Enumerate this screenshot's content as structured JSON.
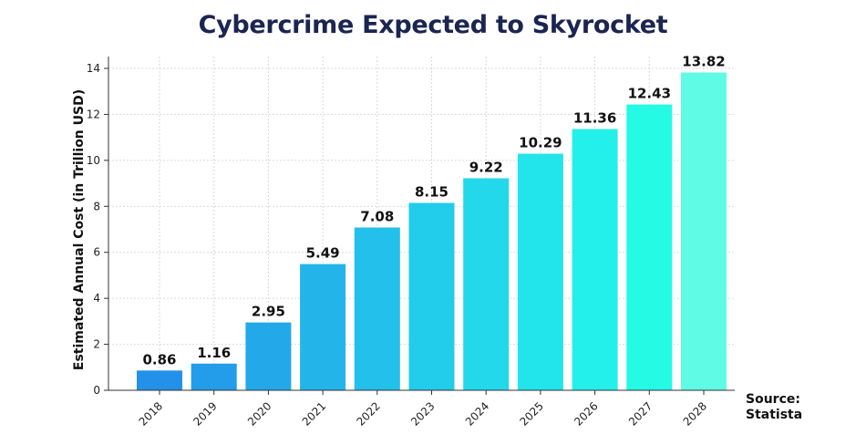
{
  "title": "Cybercrime Expected to Skyrocket",
  "source": {
    "label": "Source:",
    "name": "Statista"
  },
  "chart_data": {
    "type": "bar",
    "title": "Cybercrime Expected to Skyrocket",
    "xlabel": "",
    "ylabel": "Estimated Annual Cost (in Trillion USD)",
    "categories": [
      "2018",
      "2019",
      "2020",
      "2021",
      "2022",
      "2023",
      "2024",
      "2025",
      "2026",
      "2027",
      "2028"
    ],
    "values": [
      0.86,
      1.16,
      2.95,
      5.49,
      7.08,
      8.15,
      9.22,
      10.29,
      11.36,
      12.43,
      13.82
    ],
    "value_labels": [
      "0.86",
      "1.16",
      "2.95",
      "5.49",
      "7.08",
      "8.15",
      "9.22",
      "10.29",
      "11.36",
      "12.43",
      "13.82"
    ],
    "ylim": [
      0,
      14
    ],
    "yticks": [
      "0",
      "2",
      "4",
      "6",
      "8",
      "10",
      "12",
      "14"
    ],
    "grid": true,
    "colors": [
      "#2391ea",
      "#239cea",
      "#23a8ea",
      "#23b4ea",
      "#22c0ea",
      "#22cceb",
      "#22d8ea",
      "#22e4eb",
      "#23f0ea",
      "#24fae4",
      "#5ffbe4"
    ]
  }
}
